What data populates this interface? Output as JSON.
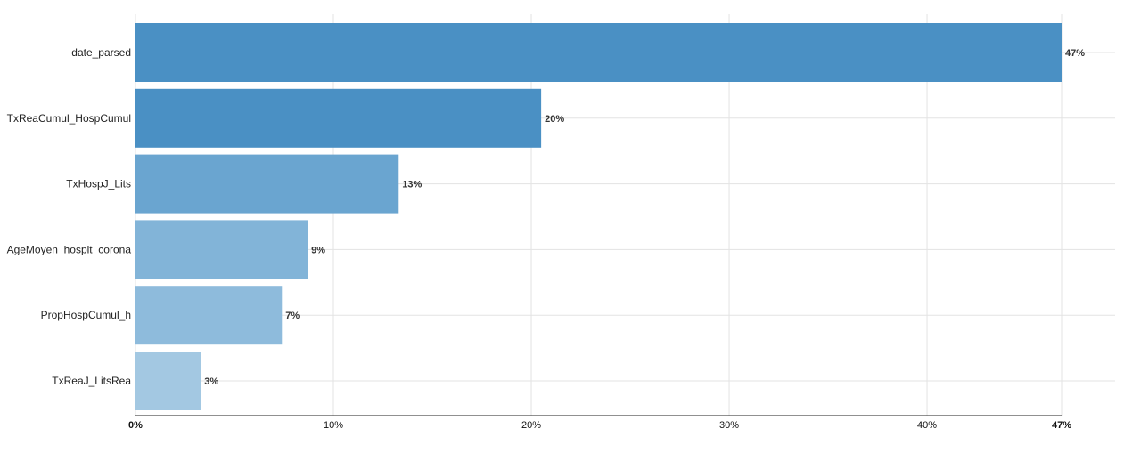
{
  "chart_data": {
    "type": "bar",
    "orientation": "horizontal",
    "title": "",
    "xlabel": "",
    "ylabel": "",
    "categories": [
      "date_parsed",
      "TxReaCumul_HospCumul",
      "TxHospJ_Lits",
      "AgeMoyen_hospit_corona",
      "PropHospCumul_h",
      "TxReaJ_LitsRea"
    ],
    "values": [
      46.8,
      20.5,
      13.3,
      8.7,
      7.4,
      3.3
    ],
    "value_labels": [
      "47%",
      "20%",
      "13%",
      "9%",
      "7%",
      "3%"
    ],
    "colors": [
      "#4a90c4",
      "#4a90c4",
      "#6aa5d0",
      "#82b4d8",
      "#8ebbdc",
      "#a3c8e2"
    ],
    "xlim": [
      0,
      46.8
    ],
    "x_ticks": [
      {
        "value": 0,
        "label": "0%",
        "bold": true
      },
      {
        "value": 10,
        "label": "10%",
        "bold": false
      },
      {
        "value": 20,
        "label": "20%",
        "bold": false
      },
      {
        "value": 30,
        "label": "30%",
        "bold": false
      },
      {
        "value": 40,
        "label": "40%",
        "bold": false
      },
      {
        "value": 46.8,
        "label": "47%",
        "bold": true
      }
    ],
    "grid": true,
    "legend": "none"
  }
}
